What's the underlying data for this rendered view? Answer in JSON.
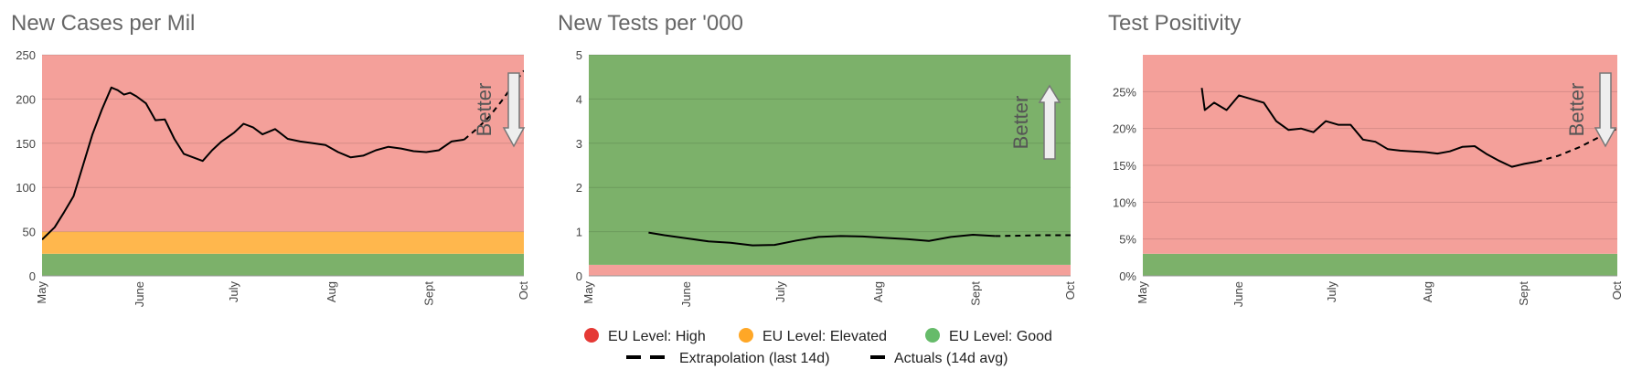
{
  "colors": {
    "high": "#f4a09a",
    "elevated": "#ffb74d",
    "good": "#7cb16a",
    "legend_high": "#e53935",
    "legend_elevated": "#ffa726",
    "legend_good": "#66bb6a",
    "line": "#000000",
    "gridline": "#d98b86",
    "arrow_fill": "#eeeeee",
    "arrow_stroke": "#777777"
  },
  "legend": {
    "high": "EU Level: High",
    "elevated": "EU Level: Elevated",
    "good": "EU Level: Good",
    "extrapolation": "Extrapolation (last 14d)",
    "actuals": "Actuals (14d avg)"
  },
  "chart_data": [
    {
      "type": "line",
      "title": "New Cases per Mil",
      "better_label": "Better",
      "better_direction": "down",
      "x_ticks": [
        "May",
        "June",
        "July",
        "Aug",
        "Sept",
        "Oct"
      ],
      "x_range": [
        "2020-05-01",
        "2020-10-01"
      ],
      "ylim": [
        0,
        250
      ],
      "y_ticks": [
        "0",
        "50",
        "100",
        "150",
        "200",
        "250"
      ],
      "y_tick_values": [
        0,
        50,
        100,
        150,
        200,
        250
      ],
      "bands": [
        {
          "level": "good",
          "from": 0,
          "to": 25
        },
        {
          "level": "elevated",
          "from": 25,
          "to": 50
        },
        {
          "level": "high",
          "from": 50,
          "to": 250
        }
      ],
      "series": [
        {
          "style": "actuals",
          "x": [
            "2020-05-01",
            "2020-05-05",
            "2020-05-08",
            "2020-05-11",
            "2020-05-14",
            "2020-05-17",
            "2020-05-20",
            "2020-05-23",
            "2020-05-25",
            "2020-05-27",
            "2020-05-29",
            "2020-05-31",
            "2020-06-03",
            "2020-06-06",
            "2020-06-09",
            "2020-06-12",
            "2020-06-15",
            "2020-06-18",
            "2020-06-21",
            "2020-06-24",
            "2020-06-27",
            "2020-07-01",
            "2020-07-04",
            "2020-07-07",
            "2020-07-10",
            "2020-07-14",
            "2020-07-18",
            "2020-07-22",
            "2020-07-26",
            "2020-07-30",
            "2020-08-03",
            "2020-08-07",
            "2020-08-11",
            "2020-08-15",
            "2020-08-19",
            "2020-08-23",
            "2020-08-27",
            "2020-08-31",
            "2020-09-04",
            "2020-09-08",
            "2020-09-12"
          ],
          "y": [
            41,
            55,
            72,
            90,
            125,
            160,
            188,
            213,
            210,
            205,
            207,
            203,
            195,
            176,
            177,
            155,
            138,
            134,
            130,
            142,
            152,
            162,
            172,
            168,
            160,
            166,
            155,
            152,
            150,
            148,
            140,
            134,
            136,
            142,
            146,
            144,
            141,
            140,
            142,
            152,
            154
          ]
        },
        {
          "style": "extrapolation",
          "x": [
            "2020-09-12",
            "2020-09-16",
            "2020-09-20",
            "2020-09-24",
            "2020-09-28",
            "2020-10-01"
          ],
          "y": [
            154,
            166,
            180,
            198,
            218,
            232
          ]
        }
      ]
    },
    {
      "type": "line",
      "title": "New Tests per '000",
      "better_label": "Better",
      "better_direction": "up",
      "x_ticks": [
        "May",
        "June",
        "July",
        "Aug",
        "Sept",
        "Oct"
      ],
      "x_range": [
        "2020-05-01",
        "2020-10-01"
      ],
      "ylim": [
        0,
        5
      ],
      "y_ticks": [
        "0",
        "1",
        "2",
        "3",
        "4",
        "5"
      ],
      "y_tick_values": [
        0,
        1,
        2,
        3,
        4,
        5
      ],
      "bands": [
        {
          "level": "high",
          "from": 0,
          "to": 0.25
        },
        {
          "level": "good",
          "from": 0.25,
          "to": 5
        }
      ],
      "series": [
        {
          "style": "actuals",
          "x": [
            "2020-05-20",
            "2020-05-25",
            "2020-06-01",
            "2020-06-08",
            "2020-06-15",
            "2020-06-22",
            "2020-06-29",
            "2020-07-06",
            "2020-07-13",
            "2020-07-20",
            "2020-07-27",
            "2020-08-03",
            "2020-08-10",
            "2020-08-17",
            "2020-08-24",
            "2020-08-31",
            "2020-09-07"
          ],
          "y": [
            0.98,
            0.92,
            0.85,
            0.78,
            0.75,
            0.69,
            0.7,
            0.8,
            0.88,
            0.9,
            0.89,
            0.86,
            0.83,
            0.79,
            0.88,
            0.93,
            0.9
          ]
        },
        {
          "style": "extrapolation",
          "x": [
            "2020-09-07",
            "2020-09-15",
            "2020-09-22",
            "2020-10-01"
          ],
          "y": [
            0.9,
            0.91,
            0.92,
            0.92
          ]
        }
      ]
    },
    {
      "type": "line",
      "title": "Test Positivity",
      "better_label": "Better",
      "better_direction": "down",
      "x_ticks": [
        "May",
        "June",
        "July",
        "Aug",
        "Sept",
        "Oct"
      ],
      "x_range": [
        "2020-05-01",
        "2020-10-01"
      ],
      "ylim": [
        0,
        30
      ],
      "y_ticks": [
        "0%",
        "5%",
        "10%",
        "15%",
        "20%",
        "25%"
      ],
      "y_tick_values": [
        0,
        5,
        10,
        15,
        20,
        25
      ],
      "bands": [
        {
          "level": "good",
          "from": 0,
          "to": 3
        },
        {
          "level": "high",
          "from": 3,
          "to": 30
        }
      ],
      "series": [
        {
          "style": "actuals",
          "x": [
            "2020-05-20",
            "2020-05-21",
            "2020-05-24",
            "2020-05-28",
            "2020-06-01",
            "2020-06-05",
            "2020-06-09",
            "2020-06-13",
            "2020-06-17",
            "2020-06-21",
            "2020-06-25",
            "2020-06-29",
            "2020-07-03",
            "2020-07-07",
            "2020-07-11",
            "2020-07-15",
            "2020-07-19",
            "2020-07-23",
            "2020-07-27",
            "2020-07-31",
            "2020-08-04",
            "2020-08-08",
            "2020-08-12",
            "2020-08-16",
            "2020-08-20",
            "2020-08-24",
            "2020-08-28",
            "2020-09-01",
            "2020-09-05"
          ],
          "y": [
            25.5,
            22.5,
            23.5,
            22.5,
            24.5,
            24.0,
            23.5,
            21.0,
            19.8,
            20.0,
            19.5,
            21.0,
            20.5,
            20.5,
            18.5,
            18.2,
            17.2,
            17.0,
            16.9,
            16.8,
            16.6,
            16.9,
            17.5,
            17.6,
            16.5,
            15.6,
            14.8,
            15.2,
            15.5
          ]
        },
        {
          "style": "extrapolation",
          "x": [
            "2020-09-05",
            "2020-09-12",
            "2020-09-19",
            "2020-09-26",
            "2020-10-01"
          ],
          "y": [
            15.5,
            16.3,
            17.5,
            19.0,
            20.0
          ]
        }
      ]
    }
  ]
}
